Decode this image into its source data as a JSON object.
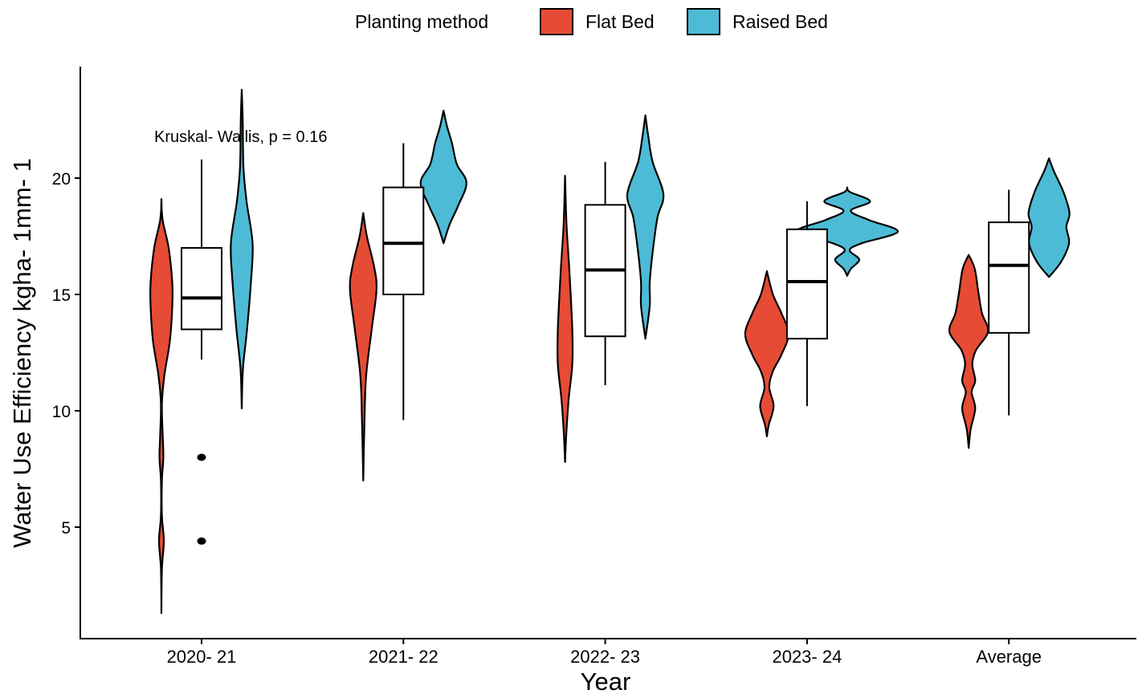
{
  "chart_data": {
    "type": "violin-box",
    "xlabel": "Year",
    "ylabel": "Water Use Efficiency kgha- 1mm- 1",
    "ylim": [
      0.5,
      25
    ],
    "yticks": [
      5,
      10,
      15,
      20
    ],
    "categories": [
      "2020- 21",
      "2021- 22",
      "2022- 23",
      "2023- 24",
      "Average"
    ],
    "annotation": "Kruskal- Wallis, p = 0.16",
    "legend": {
      "title": "Planting method",
      "position": "top",
      "entries": [
        {
          "label": "Flat Bed",
          "color": "#E64B35"
        },
        {
          "label": "Raised Bed",
          "color": "#4DBBD5"
        }
      ]
    },
    "boxplots": [
      {
        "category": "2020- 21",
        "whisker_low": 12.2,
        "q1": 13.5,
        "median": 14.85,
        "q3": 17.0,
        "whisker_high": 20.8,
        "outliers": [
          8.0,
          4.4
        ]
      },
      {
        "category": "2021- 22",
        "whisker_low": 9.6,
        "q1": 15.0,
        "median": 17.2,
        "q3": 19.6,
        "whisker_high": 21.5,
        "outliers": []
      },
      {
        "category": "2022- 23",
        "whisker_low": 11.1,
        "q1": 13.2,
        "median": 16.05,
        "q3": 18.85,
        "whisker_high": 20.7,
        "outliers": []
      },
      {
        "category": "2023- 24",
        "whisker_low": 10.2,
        "q1": 13.1,
        "median": 15.55,
        "q3": 17.8,
        "whisker_high": 19.0,
        "outliers": []
      },
      {
        "category": "Average",
        "whisker_low": 9.8,
        "q1": 13.35,
        "median": 16.25,
        "q3": 18.1,
        "whisker_high": 19.5,
        "outliers": []
      }
    ],
    "violins": [
      {
        "category": "2020- 21",
        "series": "Flat Bed",
        "density": [
          [
            19.1,
            0
          ],
          [
            18.2,
            0.05
          ],
          [
            17,
            0.3
          ],
          [
            15.5,
            0.45
          ],
          [
            14.5,
            0.45
          ],
          [
            13,
            0.35
          ],
          [
            11.5,
            0.12
          ],
          [
            10.3,
            0.02
          ],
          [
            9,
            0.05
          ],
          [
            8,
            0.08
          ],
          [
            7,
            0.02
          ],
          [
            5.5,
            0.02
          ],
          [
            4.4,
            0.1
          ],
          [
            3.2,
            0.02
          ],
          [
            1.3,
            0
          ]
        ]
      },
      {
        "category": "2020- 21",
        "series": "Raised Bed",
        "density": [
          [
            23.8,
            0
          ],
          [
            22.5,
            0.04
          ],
          [
            20.5,
            0.07
          ],
          [
            19,
            0.2
          ],
          [
            17.2,
            0.45
          ],
          [
            15.5,
            0.38
          ],
          [
            13.5,
            0.22
          ],
          [
            11.8,
            0.05
          ],
          [
            10.1,
            0
          ]
        ]
      },
      {
        "category": "2021- 22",
        "series": "Flat Bed",
        "density": [
          [
            18.5,
            0
          ],
          [
            17.5,
            0.15
          ],
          [
            16.2,
            0.45
          ],
          [
            15.2,
            0.55
          ],
          [
            13.5,
            0.35
          ],
          [
            11.5,
            0.12
          ],
          [
            9.5,
            0.05
          ],
          [
            7,
            0
          ]
        ]
      },
      {
        "category": "2021- 22",
        "series": "Raised Bed",
        "density": [
          [
            22.9,
            0
          ],
          [
            22.2,
            0.15
          ],
          [
            21.5,
            0.35
          ],
          [
            20.6,
            0.55
          ],
          [
            19.8,
            0.95
          ],
          [
            18.8,
            0.6
          ],
          [
            18,
            0.25
          ],
          [
            17.2,
            0
          ]
        ]
      },
      {
        "category": "2022- 23",
        "series": "Flat Bed",
        "density": [
          [
            20.1,
            0
          ],
          [
            18,
            0.06
          ],
          [
            16,
            0.18
          ],
          [
            13.5,
            0.3
          ],
          [
            12,
            0.3
          ],
          [
            10.5,
            0.15
          ],
          [
            9,
            0.05
          ],
          [
            7.8,
            0
          ]
        ]
      },
      {
        "category": "2022- 23",
        "series": "Raised Bed",
        "density": [
          [
            22.7,
            0
          ],
          [
            21.8,
            0.12
          ],
          [
            20.7,
            0.3
          ],
          [
            19.3,
            0.75
          ],
          [
            18.3,
            0.5
          ],
          [
            16.8,
            0.3
          ],
          [
            15.5,
            0.18
          ],
          [
            14.5,
            0.18
          ],
          [
            13.1,
            0
          ]
        ]
      },
      {
        "category": "2023- 24",
        "series": "Flat Bed",
        "density": [
          [
            16,
            0
          ],
          [
            15,
            0.25
          ],
          [
            14.2,
            0.6
          ],
          [
            13.3,
            0.9
          ],
          [
            12.4,
            0.6
          ],
          [
            11.7,
            0.25
          ],
          [
            11,
            0.1
          ],
          [
            10.2,
            0.28
          ],
          [
            9.4,
            0.08
          ],
          [
            8.9,
            0
          ]
        ]
      },
      {
        "category": "2023- 24",
        "series": "Raised Bed",
        "density": [
          [
            19.6,
            0
          ],
          [
            19.4,
            0.12
          ],
          [
            19,
            0.95
          ],
          [
            18.6,
            0.15
          ],
          [
            18.2,
            0.9
          ],
          [
            17.7,
            2.1
          ],
          [
            17.2,
            0.6
          ],
          [
            16.9,
            0.1
          ],
          [
            16.5,
            0.5
          ],
          [
            16.1,
            0.15
          ],
          [
            15.8,
            0
          ]
        ]
      },
      {
        "category": "Average",
        "series": "Flat Bed",
        "density": [
          [
            16.7,
            0
          ],
          [
            16.1,
            0.25
          ],
          [
            15.1,
            0.4
          ],
          [
            14.2,
            0.55
          ],
          [
            13.4,
            0.8
          ],
          [
            12.6,
            0.3
          ],
          [
            12,
            0.15
          ],
          [
            11.3,
            0.27
          ],
          [
            10.8,
            0.12
          ],
          [
            10.1,
            0.27
          ],
          [
            9.2,
            0.08
          ],
          [
            8.4,
            0
          ]
        ]
      },
      {
        "category": "Average",
        "series": "Raised Bed",
        "density": [
          [
            20.85,
            0
          ],
          [
            20.3,
            0.2
          ],
          [
            19.4,
            0.6
          ],
          [
            18.5,
            0.85
          ],
          [
            17.9,
            0.72
          ],
          [
            17.2,
            0.83
          ],
          [
            16.4,
            0.5
          ],
          [
            15.75,
            0
          ]
        ]
      }
    ]
  }
}
